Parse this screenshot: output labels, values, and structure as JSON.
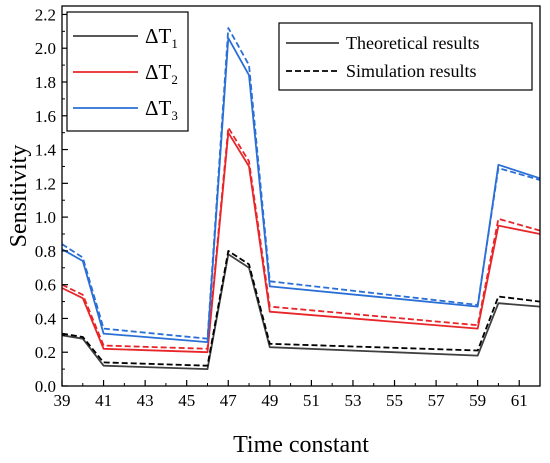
{
  "chart_data": {
    "type": "line",
    "xlabel": "Time constant",
    "ylabel": "Sensitivity",
    "xlim": [
      39,
      62
    ],
    "ylim": [
      0,
      2.25
    ],
    "xticks": [
      39,
      41,
      43,
      45,
      47,
      49,
      51,
      53,
      55,
      57,
      59,
      61
    ],
    "yticks": [
      0.0,
      0.2,
      0.4,
      0.6,
      0.8,
      1.0,
      1.2,
      1.4,
      1.6,
      1.8,
      2.0,
      2.2
    ],
    "ytick_labels": [
      "0.0",
      "0.2",
      "0.4",
      "0.6",
      "0.8",
      "1.0",
      "1.2",
      "1.4",
      "1.6",
      "1.8",
      "2.0",
      "2.2"
    ],
    "grid": false,
    "series": [
      {
        "name": "ΔT1",
        "sym": "ΔT",
        "sub": "1",
        "color": "#404040",
        "style": "solid",
        "x": [
          39,
          40,
          41,
          46,
          47,
          48,
          49,
          59,
          60,
          62
        ],
        "y": [
          0.3,
          0.28,
          0.12,
          0.1,
          0.78,
          0.7,
          0.23,
          0.18,
          0.49,
          0.47
        ]
      },
      {
        "name": "ΔT1 simulation",
        "color": "#000000",
        "style": "dashed",
        "x": [
          39,
          40,
          41,
          46,
          47,
          48,
          49,
          59,
          60,
          62
        ],
        "y": [
          0.31,
          0.29,
          0.14,
          0.12,
          0.8,
          0.72,
          0.25,
          0.21,
          0.53,
          0.5
        ]
      },
      {
        "name": "ΔT2",
        "sym": "ΔT",
        "sub": "2",
        "color": "#e8262a",
        "style": "solid",
        "x": [
          39,
          40,
          41,
          46,
          47,
          48,
          49,
          59,
          60,
          62
        ],
        "y": [
          0.58,
          0.52,
          0.22,
          0.2,
          1.5,
          1.3,
          0.44,
          0.34,
          0.95,
          0.9
        ]
      },
      {
        "name": "ΔT2 simulation",
        "color": "#e8262a",
        "style": "dashed",
        "x": [
          39,
          40,
          41,
          46,
          47,
          48,
          49,
          59,
          60,
          62
        ],
        "y": [
          0.6,
          0.54,
          0.24,
          0.22,
          1.53,
          1.33,
          0.47,
          0.36,
          0.99,
          0.92
        ]
      },
      {
        "name": "ΔT3",
        "sym": "ΔT",
        "sub": "3",
        "color": "#2a6fd6",
        "style": "solid",
        "x": [
          39,
          40,
          41,
          46,
          47,
          48,
          49,
          59,
          60,
          62
        ],
        "y": [
          0.81,
          0.74,
          0.31,
          0.26,
          2.06,
          1.84,
          0.59,
          0.47,
          1.31,
          1.23
        ]
      },
      {
        "name": "ΔT3 simulation",
        "color": "#2a6fd6",
        "style": "dashed",
        "x": [
          39,
          40,
          41,
          46,
          47,
          48,
          49,
          59,
          60,
          62
        ],
        "y": [
          0.84,
          0.76,
          0.34,
          0.28,
          2.12,
          1.9,
          0.62,
          0.48,
          1.29,
          1.22
        ]
      }
    ],
    "legend_left": {
      "placement": "top-left",
      "entries": [
        {
          "sym": "ΔT",
          "sub": "1",
          "color": "#404040"
        },
        {
          "sym": "ΔT",
          "sub": "2",
          "color": "#e8262a"
        },
        {
          "sym": "ΔT",
          "sub": "3",
          "color": "#2a6fd6"
        }
      ]
    },
    "legend_right": {
      "placement": "top-right",
      "entries": [
        {
          "label": "Theoretical results",
          "style": "solid",
          "color": "#404040"
        },
        {
          "label": "Simulation results",
          "style": "dashed",
          "color": "#000000"
        }
      ]
    }
  }
}
